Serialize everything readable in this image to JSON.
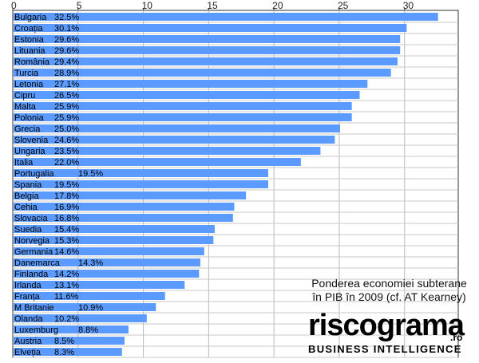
{
  "chart_data": {
    "type": "bar",
    "orientation": "horizontal",
    "x_ticks": [
      "0",
      "5",
      "10",
      "15",
      "20",
      "25",
      "30"
    ],
    "xlim": [
      0,
      33.5
    ],
    "grid": true,
    "bar_color": "#5b9bff",
    "categories": [
      "Bulgaria",
      "Croația",
      "Estonia",
      "Lituania",
      "România",
      "Turcia",
      "Letonia",
      "Cipru",
      "Malta",
      "Polonia",
      "Grecia",
      "Slovenia",
      "Ungaria",
      "Italia",
      "Portugalia",
      "Spania",
      "Belgia",
      "Cehia",
      "Slovacia",
      "Suedia",
      "Norvegia",
      "Germania",
      "Danemarca",
      "Finlanda",
      "Irlanda",
      "Franța",
      "M Britanie",
      "Olanda",
      "Luxemburg",
      "Austria",
      "Elveția"
    ],
    "values": [
      32.5,
      30.1,
      29.6,
      29.6,
      29.4,
      28.9,
      27.1,
      26.5,
      25.9,
      25.9,
      25.0,
      24.6,
      23.5,
      22.0,
      19.5,
      19.5,
      17.8,
      16.9,
      16.8,
      15.4,
      15.3,
      14.6,
      14.3,
      14.2,
      13.1,
      11.6,
      10.9,
      10.2,
      8.8,
      8.5,
      8.3
    ],
    "value_labels": [
      "32.5%",
      "30.1%",
      "29.6%",
      "29.6%",
      "29.4%",
      "28.9%",
      "27.1%",
      "26.5%",
      "25.9%",
      "25.9%",
      "25.0%",
      "24.6%",
      "23.5%",
      "22.0%",
      "19.5%",
      "19.5%",
      "17.8%",
      "16.9%",
      "16.8%",
      "15.4%",
      "15.3%",
      "14.6%",
      "14.3%",
      "14.2%",
      "13.1%",
      "11.6%",
      "10.9%",
      "10.2%",
      "8.8%",
      "8.5%",
      "8.3%"
    ]
  },
  "caption": {
    "line1": "Ponderea economiei subterane",
    "line2": "în PIB în 2009 (cf. AT Kearney)"
  },
  "logo": {
    "wordmark": "riscograma",
    "tld": ".ro",
    "tagline": "BUSINESS INTELLIGENCE"
  }
}
